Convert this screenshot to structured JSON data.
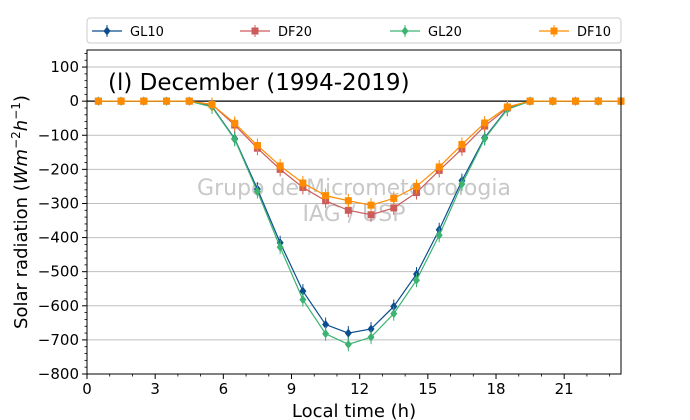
{
  "chart_data": {
    "type": "line",
    "title": "(l) December (1994-2019)",
    "xlabel": "Local time (h)",
    "ylabel_main": "Solar radiation (",
    "ylabel_unit": "Wm",
    "ylabel_exp1": "−2",
    "ylabel_h": "h",
    "ylabel_exp2": "−1",
    "ylabel_close": ")",
    "watermark_line1": "Grupo de Micrometeorologia",
    "watermark_line2": "IAG / USP",
    "xlim": [
      0,
      23.5
    ],
    "ylim": [
      -800,
      150
    ],
    "xticks": [
      0,
      3,
      6,
      9,
      12,
      15,
      18,
      21
    ],
    "yticks": [
      -800,
      -700,
      -600,
      -500,
      -400,
      -300,
      -200,
      -100,
      0,
      100
    ],
    "x": [
      0.5,
      1.5,
      2.5,
      3.5,
      4.5,
      5.5,
      6.5,
      7.5,
      8.5,
      9.5,
      10.5,
      11.5,
      12.5,
      13.5,
      14.5,
      15.5,
      16.5,
      17.5,
      18.5,
      19.5,
      20.5,
      21.5,
      22.5,
      23.5
    ],
    "legend_position": "top, outside plot",
    "grid": "horizontal",
    "series": [
      {
        "name": "GL10",
        "color": "#0b4d8e",
        "marker": "diamond",
        "values": [
          0,
          0,
          0,
          0,
          0,
          -15,
          -110,
          -258,
          -415,
          -557,
          -655,
          -680,
          -668,
          -602,
          -507,
          -377,
          -233,
          -107,
          -22,
          0,
          0,
          0,
          0,
          0
        ]
      },
      {
        "name": "DF20",
        "color": "#cc5c5c",
        "marker": "square",
        "values": [
          0,
          0,
          0,
          0,
          0,
          -10,
          -70,
          -138,
          -200,
          -253,
          -292,
          -320,
          -333,
          -313,
          -268,
          -203,
          -140,
          -73,
          -20,
          0,
          0,
          0,
          0,
          0
        ]
      },
      {
        "name": "GL20",
        "color": "#3cb371",
        "marker": "diamond",
        "values": [
          0,
          0,
          0,
          0,
          0,
          -17,
          -112,
          -265,
          -428,
          -582,
          -682,
          -713,
          -692,
          -623,
          -525,
          -393,
          -243,
          -110,
          -24,
          0,
          0,
          0,
          0,
          0
        ]
      },
      {
        "name": "DF10",
        "color": "#ff8c00",
        "marker": "square",
        "values": [
          0,
          0,
          0,
          0,
          0,
          -10,
          -65,
          -130,
          -190,
          -240,
          -277,
          -292,
          -305,
          -285,
          -250,
          -193,
          -127,
          -64,
          -17,
          0,
          0,
          0,
          0,
          0
        ]
      }
    ]
  }
}
